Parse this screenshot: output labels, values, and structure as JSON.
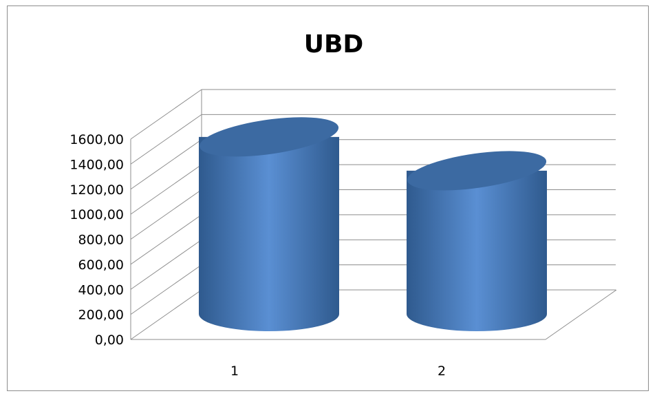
{
  "chart_data": {
    "type": "bar",
    "style": "3d-cylinder",
    "title": "UBD",
    "xlabel": "",
    "ylabel": "",
    "categories": [
      "1",
      "2"
    ],
    "values": [
      1590,
      1320
    ],
    "ylim": [
      0,
      1600
    ],
    "y_tick_step": 200,
    "y_tick_labels": [
      "0,00",
      "200,00",
      "400,00",
      "600,00",
      "800,00",
      "1000,00",
      "1200,00",
      "1400,00",
      "1600,00"
    ],
    "grid": true,
    "legend": "none",
    "colors": {
      "bar_light": "#5a8fd3",
      "bar_dark": "#2f5a8e",
      "bar_top": "#3c6aa2",
      "gridline": "#8c8c8c",
      "text": "#000000"
    }
  }
}
